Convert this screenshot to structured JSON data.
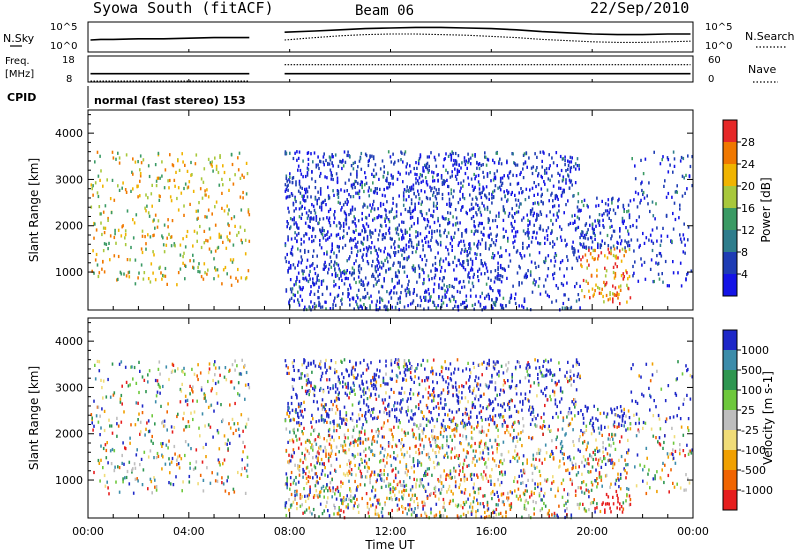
{
  "header": {
    "station": "Syowa South (fitACF)",
    "beam": "Beam 06",
    "date": "22/Sep/2010"
  },
  "top_panels": {
    "nsky_label": "N.Sky",
    "nsky_ticks": [
      "10^5",
      "10^0"
    ],
    "nsearch_label": "N.Search",
    "nsearch_ticks": [
      "10^5",
      "10^0"
    ],
    "freq_label_line1": "Freq.",
    "freq_label_line2": "[MHz]",
    "freq_ticks": [
      "18",
      "8"
    ],
    "nave_label": "Nave",
    "nave_ticks": [
      "60",
      "0"
    ],
    "cpid_label": "CPID",
    "cpid_text": "normal (fast stereo) 153"
  },
  "colors": {
    "frame": "#000000",
    "power_scale": [
      "#1414e6",
      "#1e3cb4",
      "#2e7d8c",
      "#3a9a64",
      "#a8c83c",
      "#f0b400",
      "#f07800",
      "#e62828"
    ],
    "velocity_scale": [
      "#1e28c8",
      "#3c8caa",
      "#2e9650",
      "#6ec83c",
      "#bebebe",
      "#f0dc78",
      "#f0a000",
      "#f06400",
      "#e61e1e"
    ]
  },
  "chart_data": [
    {
      "type": "line",
      "panel": "nsky-nsearch",
      "series": [
        {
          "name": "N.Sky",
          "style": "solid",
          "x_hours": [
            0.1,
            0.5,
            1,
            2,
            3,
            4,
            5,
            6.4,
            7.8,
            9,
            10,
            11,
            12,
            13,
            14,
            15,
            16,
            17,
            18,
            19,
            20,
            21,
            22,
            23,
            23.9
          ],
          "log10_values": [
            2.0,
            2.1,
            2.1,
            2.2,
            2.2,
            2.3,
            2.4,
            2.4,
            3.3,
            3.5,
            3.7,
            3.9,
            4.0,
            4.1,
            4.1,
            4.0,
            3.9,
            3.7,
            3.4,
            3.2,
            3.0,
            2.9,
            2.9,
            3.0,
            3.0
          ]
        },
        {
          "name": "N.Search",
          "style": "dotted",
          "x_hours": [
            7.8,
            9,
            10,
            11,
            12,
            13,
            14,
            15,
            16,
            17,
            18,
            19,
            20,
            21,
            22,
            23,
            23.9
          ],
          "log10_values": [
            2.0,
            2.4,
            2.7,
            2.9,
            3.0,
            3.0,
            2.9,
            2.8,
            2.6,
            2.4,
            2.1,
            1.9,
            1.7,
            1.6,
            1.6,
            1.7,
            1.8
          ]
        }
      ],
      "gap_hours": [
        6.4,
        7.8
      ]
    },
    {
      "type": "line",
      "panel": "freq-nave",
      "series": [
        {
          "name": "Freq.",
          "style": "solid",
          "x_hours": [
            0.1,
            6.4
          ],
          "values_mhz": [
            11.2,
            11.2
          ]
        },
        {
          "name": "Freq.",
          "style": "solid",
          "x_hours": [
            7.8,
            23.9
          ],
          "values_mhz": [
            11.2,
            11.2
          ]
        },
        {
          "name": "Nave",
          "style": "dotted",
          "x_hours": [
            0.1,
            6.4
          ],
          "values": [
            2,
            2
          ]
        },
        {
          "name": "Nave",
          "style": "dotted",
          "x_hours": [
            7.8,
            23.9
          ],
          "values": [
            40,
            40
          ]
        }
      ],
      "freq_ylim": [
        8,
        18
      ],
      "nave_ylim": [
        0,
        60
      ]
    },
    {
      "type": "heatmap",
      "panel": "power",
      "ylabel": "Slant Range [km]",
      "colorbar_label": "Power [dB]",
      "xlim_hours": [
        0,
        24
      ],
      "ylim_km": [
        180,
        4500
      ],
      "yticks": [
        "1000",
        "2000",
        "3000",
        "4000"
      ],
      "colorbar_ticks": [
        "4",
        "8",
        "12",
        "16",
        "20",
        "24",
        "28"
      ],
      "colorbar_range": [
        0,
        32
      ],
      "gap_hours": [
        6.4,
        7.8
      ]
    },
    {
      "type": "heatmap",
      "panel": "velocity",
      "ylabel": "Slant Range [km]",
      "colorbar_label": "Velocity [m s-1]",
      "xlim_hours": [
        0,
        24
      ],
      "ylim_km": [
        180,
        4500
      ],
      "yticks": [
        "1000",
        "2000",
        "3000",
        "4000"
      ],
      "colorbar_ticks": [
        "1000",
        "500",
        "100",
        "25",
        "-25",
        "-100",
        "-500",
        "-1000"
      ],
      "gap_hours": [
        6.4,
        7.8
      ]
    }
  ],
  "x_axis": {
    "label": "Time UT",
    "ticks": [
      "00:00",
      "04:00",
      "08:00",
      "12:00",
      "16:00",
      "20:00",
      "00:00"
    ]
  }
}
